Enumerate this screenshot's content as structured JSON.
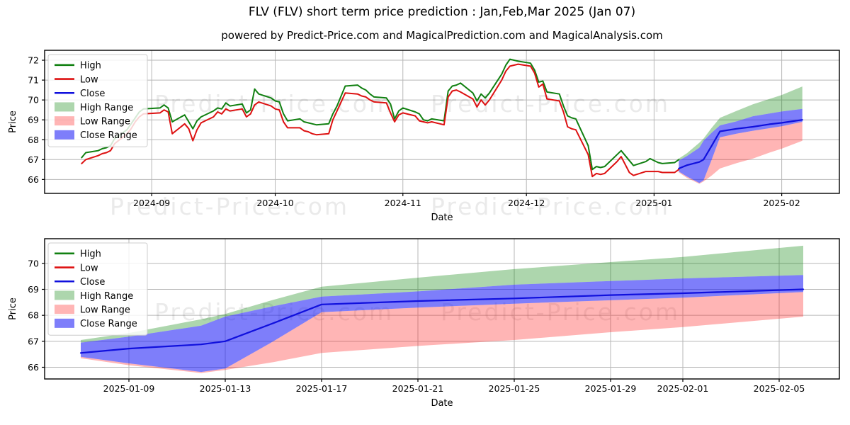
{
  "page": {
    "title": "FLV (FLV) short term price prediction : Jan,Feb,Mar 2025 (Jan 07)",
    "subtitle": "powered by Predict-Price.com and MagicalPrediction.com and MagicalAnalysis.com",
    "watermark": "Predict-Price.com"
  },
  "chart_data": {
    "type": "line",
    "title": "FLV (FLV) short term price prediction : Jan,Feb,Mar 2025 (Jan 07)",
    "subtitle": "powered by Predict-Price.com and MagicalPrediction.com and MagicalAnalysis.com",
    "legend": [
      {
        "label": "High",
        "swatch": "line",
        "color": "#118011"
      },
      {
        "label": "Low",
        "swatch": "line",
        "color": "#dd1111"
      },
      {
        "label": "Close",
        "swatch": "line",
        "color": "#1010dd"
      },
      {
        "label": "High Range",
        "swatch": "patch",
        "color": "rgba(0,128,0,0.32)"
      },
      {
        "label": "Low Range",
        "swatch": "patch",
        "color": "rgba(255,30,30,0.33)"
      },
      {
        "label": "Close Range",
        "swatch": "patch",
        "color": "rgba(20,20,245,0.55)"
      }
    ],
    "colors": {
      "high_line": "#118011",
      "low_line": "#dd1111",
      "close_line": "#1010dd",
      "high_range_fill": "rgba(0,128,0,0.32)",
      "low_range_fill": "rgba(255,30,30,0.33)",
      "close_range_fill": "rgba(20,20,245,0.55)",
      "grid": "#b7b7b7",
      "spine": "#000000",
      "watermark": "rgba(60,60,60,0.11)"
    },
    "charts": [
      {
        "name": "history-and-prediction",
        "xlabel": "Date",
        "ylabel": "Price",
        "grid": true,
        "legend_position": "upper-left",
        "xlim": [
          "2024-08-06",
          "2025-02-15"
        ],
        "ylim": [
          65.3,
          72.5
        ],
        "yticks": [
          66,
          67,
          68,
          69,
          70,
          71,
          72
        ],
        "xticks": [
          {
            "label": "2024-09",
            "date": "2024-09-01"
          },
          {
            "label": "2024-10",
            "date": "2024-10-01"
          },
          {
            "label": "2024-11",
            "date": "2024-11-01"
          },
          {
            "label": "2024-12",
            "date": "2024-12-01"
          },
          {
            "label": "2025-01",
            "date": "2025-01-01"
          },
          {
            "label": "2025-02",
            "date": "2025-02-01"
          }
        ],
        "show_history": true,
        "show_prediction": true
      },
      {
        "name": "prediction-zoom",
        "xlabel": "Date",
        "ylabel": "Price",
        "grid": true,
        "legend_position": "upper-left",
        "xlim": [
          "2025-01-05T12:00:00Z",
          "2025-02-07T12:00:00Z"
        ],
        "ylim": [
          65.55,
          70.95
        ],
        "yticks": [
          66,
          67,
          68,
          69,
          70
        ],
        "xticks": [
          {
            "label": "2025-01-09",
            "date": "2025-01-09"
          },
          {
            "label": "2025-01-13",
            "date": "2025-01-13"
          },
          {
            "label": "2025-01-17",
            "date": "2025-01-17"
          },
          {
            "label": "2025-01-21",
            "date": "2025-01-21"
          },
          {
            "label": "2025-01-25",
            "date": "2025-01-25"
          },
          {
            "label": "2025-01-29",
            "date": "2025-01-29"
          },
          {
            "label": "2025-02-01",
            "date": "2025-02-01"
          },
          {
            "label": "2025-02-05",
            "date": "2025-02-05"
          }
        ],
        "show_history": false,
        "show_prediction": true
      }
    ],
    "series": {
      "historical": {
        "dates": [
          "2024-08-15",
          "2024-08-16",
          "2024-08-19",
          "2024-08-20",
          "2024-08-21",
          "2024-08-22",
          "2024-08-23",
          "2024-08-26",
          "2024-08-27",
          "2024-08-28",
          "2024-08-29",
          "2024-08-30",
          "2024-09-03",
          "2024-09-04",
          "2024-09-05",
          "2024-09-06",
          "2024-09-09",
          "2024-09-10",
          "2024-09-11",
          "2024-09-12",
          "2024-09-13",
          "2024-09-16",
          "2024-09-17",
          "2024-09-18",
          "2024-09-19",
          "2024-09-20",
          "2024-09-23",
          "2024-09-24",
          "2024-09-25",
          "2024-09-26",
          "2024-09-27",
          "2024-09-30",
          "2024-10-01",
          "2024-10-02",
          "2024-10-03",
          "2024-10-04",
          "2024-10-07",
          "2024-10-08",
          "2024-10-09",
          "2024-10-10",
          "2024-10-11",
          "2024-10-14",
          "2024-10-15",
          "2024-10-16",
          "2024-10-17",
          "2024-10-18",
          "2024-10-21",
          "2024-10-22",
          "2024-10-23",
          "2024-10-24",
          "2024-10-25",
          "2024-10-28",
          "2024-10-29",
          "2024-10-30",
          "2024-10-31",
          "2024-11-01",
          "2024-11-04",
          "2024-11-05",
          "2024-11-06",
          "2024-11-07",
          "2024-11-08",
          "2024-11-11",
          "2024-11-12",
          "2024-11-13",
          "2024-11-14",
          "2024-11-15",
          "2024-11-18",
          "2024-11-19",
          "2024-11-20",
          "2024-11-21",
          "2024-11-22",
          "2024-11-25",
          "2024-11-26",
          "2024-11-27",
          "2024-11-29",
          "2024-12-02",
          "2024-12-03",
          "2024-12-04",
          "2024-12-05",
          "2024-12-06",
          "2024-12-09",
          "2024-12-10",
          "2024-12-11",
          "2024-12-12",
          "2024-12-13",
          "2024-12-16",
          "2024-12-17",
          "2024-12-18",
          "2024-12-19",
          "2024-12-20",
          "2024-12-23",
          "2024-12-24",
          "2024-12-26",
          "2024-12-27",
          "2024-12-30",
          "2024-12-31",
          "2025-01-02",
          "2025-01-03",
          "2025-01-06",
          "2025-01-07"
        ],
        "high": [
          67.1,
          67.35,
          67.45,
          67.55,
          67.6,
          67.7,
          68.05,
          68.5,
          68.8,
          69.1,
          69.4,
          69.55,
          69.6,
          69.75,
          69.6,
          68.9,
          69.25,
          68.9,
          68.55,
          68.95,
          69.15,
          69.45,
          69.6,
          69.55,
          69.85,
          69.7,
          69.8,
          69.35,
          69.5,
          70.55,
          70.3,
          70.1,
          69.95,
          69.9,
          69.3,
          68.95,
          69.05,
          68.9,
          68.85,
          68.8,
          68.75,
          68.8,
          69.3,
          69.7,
          70.2,
          70.7,
          70.75,
          70.6,
          70.5,
          70.3,
          70.15,
          70.1,
          69.8,
          69.05,
          69.45,
          69.6,
          69.4,
          69.3,
          69.0,
          68.95,
          69.05,
          68.95,
          70.45,
          70.7,
          70.75,
          70.85,
          70.35,
          69.95,
          70.3,
          70.1,
          70.35,
          71.3,
          71.75,
          72.05,
          71.95,
          71.85,
          71.5,
          70.9,
          70.95,
          70.4,
          70.3,
          69.7,
          69.2,
          69.1,
          69.05,
          67.7,
          66.5,
          66.65,
          66.6,
          66.65,
          67.25,
          67.45,
          66.95,
          66.7,
          66.9,
          67.05,
          66.85,
          66.8,
          66.85,
          67.0
        ],
        "low": [
          66.8,
          67.0,
          67.2,
          67.3,
          67.35,
          67.45,
          67.8,
          68.3,
          68.55,
          68.9,
          69.15,
          69.3,
          69.35,
          69.5,
          69.4,
          68.3,
          68.8,
          68.55,
          67.95,
          68.5,
          68.85,
          69.15,
          69.4,
          69.3,
          69.55,
          69.45,
          69.55,
          69.15,
          69.3,
          69.75,
          69.9,
          69.7,
          69.55,
          69.5,
          68.9,
          68.6,
          68.6,
          68.45,
          68.4,
          68.3,
          68.25,
          68.3,
          69.0,
          69.45,
          69.9,
          70.35,
          70.3,
          70.2,
          70.15,
          70.0,
          69.9,
          69.85,
          69.35,
          68.9,
          69.25,
          69.35,
          69.2,
          68.95,
          68.9,
          68.85,
          68.9,
          68.75,
          70.15,
          70.45,
          70.5,
          70.4,
          70.05,
          69.65,
          70.0,
          69.75,
          70.0,
          71.0,
          71.45,
          71.7,
          71.8,
          71.7,
          71.35,
          70.65,
          70.8,
          70.05,
          69.95,
          69.4,
          68.65,
          68.55,
          68.5,
          67.25,
          66.15,
          66.3,
          66.25,
          66.3,
          66.9,
          67.15,
          66.35,
          66.2,
          66.4,
          66.4,
          66.4,
          66.35,
          66.35,
          66.5
        ]
      },
      "prediction": {
        "dates": [
          "2025-01-07",
          "2025-01-09",
          "2025-01-12",
          "2025-01-13",
          "2025-01-15",
          "2025-01-17",
          "2025-01-21",
          "2025-01-25",
          "2025-01-29",
          "2025-02-01",
          "2025-02-06"
        ],
        "close": [
          66.55,
          66.72,
          66.88,
          67.0,
          67.7,
          68.42,
          68.55,
          68.65,
          68.78,
          68.85,
          69.0
        ],
        "close_upper": [
          66.95,
          67.18,
          67.6,
          67.95,
          68.35,
          68.72,
          68.92,
          69.18,
          69.32,
          69.42,
          69.55
        ],
        "close_lower": [
          66.4,
          66.15,
          65.82,
          65.95,
          67.0,
          68.12,
          68.3,
          68.45,
          68.58,
          68.68,
          68.9
        ],
        "high_upper": [
          67.05,
          67.32,
          67.85,
          68.05,
          68.6,
          69.1,
          69.45,
          69.78,
          70.05,
          70.25,
          70.68
        ],
        "low_lower": [
          66.35,
          66.08,
          65.78,
          65.9,
          66.2,
          66.55,
          66.82,
          67.05,
          67.35,
          67.55,
          67.95
        ]
      }
    }
  }
}
